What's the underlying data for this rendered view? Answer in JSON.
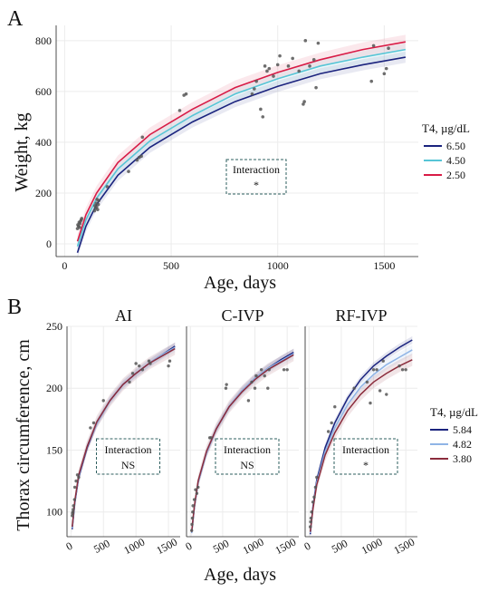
{
  "chart_data": [
    {
      "panel": "A",
      "type": "line",
      "xlabel": "Age, days",
      "ylabel": "Weight, kg",
      "xlim": [
        -40,
        1660
      ],
      "ylim": [
        -50,
        860
      ],
      "xticks": [
        0,
        500,
        1000,
        1500
      ],
      "yticks": [
        0,
        200,
        400,
        600,
        800
      ],
      "grid": true,
      "legend": {
        "title": "T4, µg/dL",
        "position": "right"
      },
      "series": [
        {
          "name": "6.50",
          "color": "#1a237e",
          "x": [
            60,
            100,
            150,
            250,
            400,
            600,
            800,
            1000,
            1200,
            1400,
            1600
          ],
          "y": [
            -35,
            70,
            155,
            270,
            380,
            480,
            560,
            620,
            670,
            705,
            735
          ]
        },
        {
          "name": "4.50",
          "color": "#56c5d6",
          "x": [
            60,
            100,
            150,
            250,
            400,
            600,
            800,
            1000,
            1200,
            1400,
            1600
          ],
          "y": [
            -10,
            95,
            180,
            295,
            405,
            505,
            590,
            650,
            700,
            735,
            765
          ]
        },
        {
          "name": "2.50",
          "color": "#d81b46",
          "x": [
            60,
            100,
            150,
            250,
            400,
            600,
            800,
            1000,
            1200,
            1400,
            1600
          ],
          "y": [
            10,
            115,
            200,
            320,
            430,
            530,
            615,
            675,
            725,
            765,
            795
          ]
        }
      ],
      "points": {
        "x": [
          60,
          62,
          65,
          68,
          70,
          72,
          75,
          78,
          80,
          140,
          142,
          145,
          148,
          150,
          152,
          155,
          158,
          160,
          200,
          300,
          340,
          350,
          360,
          365,
          540,
          560,
          570,
          880,
          890,
          900,
          920,
          930,
          940,
          950,
          960,
          980,
          1000,
          1010,
          1050,
          1070,
          1100,
          1120,
          1125,
          1130,
          1150,
          1170,
          1180,
          1190,
          1440,
          1450,
          1500,
          1510,
          1520
        ],
        "y": [
          60,
          75,
          70,
          85,
          65,
          80,
          90,
          95,
          100,
          130,
          150,
          140,
          160,
          145,
          175,
          135,
          155,
          170,
          225,
          285,
          330,
          340,
          345,
          420,
          525,
          585,
          590,
          590,
          610,
          640,
          530,
          500,
          700,
          680,
          690,
          660,
          705,
          740,
          700,
          730,
          680,
          550,
          560,
          800,
          700,
          725,
          615,
          790,
          640,
          780,
          670,
          690,
          770
        ]
      },
      "annotation": {
        "label": "Interaction",
        "value": "*"
      }
    },
    {
      "panel": "B",
      "type": "line",
      "xlabel": "Age, days",
      "ylabel": "Thorax circumference, cm",
      "ylim": [
        80,
        250
      ],
      "yticks": [
        100,
        150,
        200,
        250
      ],
      "xticks": [
        0,
        500,
        1000,
        1500
      ],
      "grid": true,
      "legend": {
        "title": "T4, µg/dL",
        "position": "right"
      },
      "series_meta": [
        {
          "name": "5.84",
          "color": "#1a237e"
        },
        {
          "name": "4.82",
          "color": "#8fb4e6"
        },
        {
          "name": "3.80",
          "color": "#8b2c3c"
        }
      ],
      "facets": [
        {
          "title": "AI",
          "annotation": {
            "label": "Interaction",
            "value": "NS"
          },
          "series": [
            {
              "name": "5.84",
              "x": [
                20,
                60,
                120,
                250,
                400,
                600,
                800,
                1000,
                1200,
                1400,
                1600
              ],
              "y": [
                86,
                107,
                128,
                152,
                172,
                190,
                203,
                212,
                220,
                227,
                234
              ]
            },
            {
              "name": "4.82",
              "x": [
                20,
                60,
                120,
                250,
                400,
                600,
                800,
                1000,
                1200,
                1400,
                1600
              ],
              "y": [
                87,
                108,
                129,
                153,
                172,
                190,
                203,
                212,
                220,
                227,
                233
              ]
            },
            {
              "name": "3.80",
              "x": [
                20,
                60,
                120,
                250,
                400,
                600,
                800,
                1000,
                1200,
                1400,
                1600
              ],
              "y": [
                88,
                109,
                130,
                153,
                173,
                190,
                203,
                212,
                220,
                226,
                232
              ]
            }
          ],
          "points": {
            "x": [
              20,
              25,
              30,
              35,
              40,
              55,
              60,
              80,
              100,
              120,
              300,
              350,
              500,
              900,
              950,
              1000,
              1050,
              1100,
              1200,
              1220,
              1500,
              1520
            ],
            "y": [
              97,
              99,
              100,
              102,
              105,
              110,
              120,
              125,
              130,
              128,
              168,
              172,
              190,
              205,
              212,
              220,
              218,
              215,
              222,
              220,
              218,
              222
            ]
          }
        },
        {
          "title": "C-IVP",
          "annotation": {
            "label": "Interaction",
            "value": "NS"
          },
          "series": [
            {
              "name": "5.84",
              "x": [
                20,
                60,
                120,
                250,
                400,
                600,
                800,
                1000,
                1200,
                1400,
                1600
              ],
              "y": [
                83,
                103,
                124,
                148,
                167,
                185,
                198,
                208,
                216,
                223,
                229
              ]
            },
            {
              "name": "4.82",
              "x": [
                20,
                60,
                120,
                250,
                400,
                600,
                800,
                1000,
                1200,
                1400,
                1600
              ],
              "y": [
                83,
                103,
                124,
                148,
                167,
                185,
                198,
                208,
                216,
                222,
                228
              ]
            },
            {
              "name": "3.80",
              "x": [
                20,
                60,
                120,
                250,
                400,
                600,
                800,
                1000,
                1200,
                1400,
                1600
              ],
              "y": [
                84,
                104,
                125,
                149,
                167,
                185,
                197,
                207,
                215,
                221,
                227
              ]
            }
          ],
          "points": {
            "x": [
              20,
              25,
              30,
              35,
              40,
              60,
              80,
              100,
              120,
              300,
              320,
              550,
              560,
              900,
              950,
              1000,
              1020,
              1100,
              1150,
              1200,
              1220,
              1450,
              1500
            ],
            "y": [
              85,
              90,
              95,
              100,
              105,
              110,
              118,
              115,
              120,
              160,
              160,
              200,
              203,
              190,
              205,
              200,
              210,
              215,
              210,
              200,
              215,
              215,
              215
            ]
          }
        },
        {
          "title": "RF-IVP",
          "annotation": {
            "label": "Interaction",
            "value": "*"
          },
          "series": [
            {
              "name": "5.84",
              "x": [
                20,
                60,
                120,
                250,
                400,
                600,
                800,
                1000,
                1200,
                1400,
                1600
              ],
              "y": [
                82,
                104,
                126,
                152,
                172,
                192,
                207,
                218,
                226,
                233,
                239
              ]
            },
            {
              "name": "4.82",
              "x": [
                20,
                60,
                120,
                250,
                400,
                600,
                800,
                1000,
                1200,
                1400,
                1600
              ],
              "y": [
                83,
                103,
                124,
                149,
                168,
                187,
                201,
                211,
                219,
                225,
                231
              ]
            },
            {
              "name": "3.80",
              "x": [
                20,
                60,
                120,
                250,
                400,
                600,
                800,
                1000,
                1200,
                1400,
                1600
              ],
              "y": [
                84,
                102,
                122,
                146,
                164,
                182,
                195,
                205,
                212,
                218,
                223
              ]
            }
          ],
          "points": {
            "x": [
              20,
              25,
              30,
              40,
              60,
              80,
              100,
              120,
              300,
              350,
              400,
              700,
              900,
              950,
              1000,
              1050,
              1100,
              1150,
              1200,
              1400,
              1450,
              1500
            ],
            "y": [
              88,
              92,
              95,
              100,
              108,
              112,
              120,
              128,
              165,
              172,
              185,
              200,
              205,
              188,
              215,
              215,
              198,
              222,
              195,
              218,
              215,
              215
            ]
          }
        }
      ]
    }
  ]
}
